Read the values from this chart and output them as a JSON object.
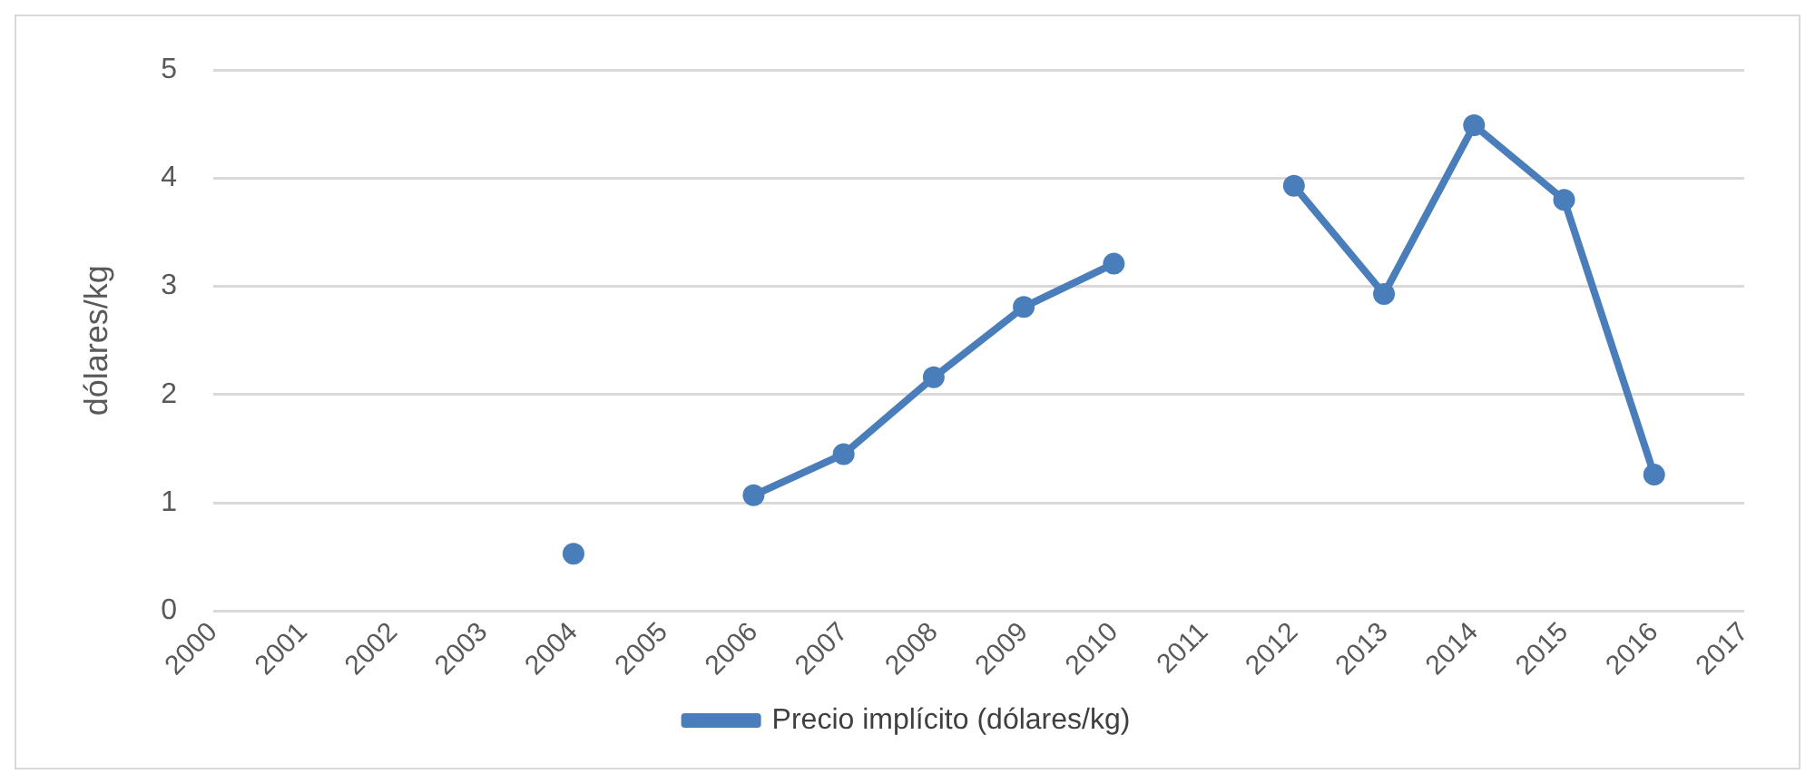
{
  "chart_data": {
    "type": "line",
    "ylabel": "dólares/kg",
    "categories": [
      "2000",
      "2001",
      "2002",
      "2003",
      "2004",
      "2005",
      "2006",
      "2007",
      "2008",
      "2009",
      "2010",
      "2011",
      "2012",
      "2013",
      "2014",
      "2015",
      "2016",
      "2017"
    ],
    "series": [
      {
        "name": "Precio implícito (dólares/kg)",
        "color": "#4a7ebb",
        "values": [
          null,
          null,
          null,
          null,
          0.53,
          null,
          1.07,
          1.45,
          2.16,
          2.81,
          3.21,
          null,
          3.93,
          2.93,
          4.49,
          3.8,
          1.26,
          null
        ]
      }
    ],
    "ylim": [
      0,
      5
    ],
    "yticks": [
      0,
      1,
      2,
      3,
      4,
      5
    ],
    "grid": "y",
    "legend": "bottom",
    "marker": "circle",
    "line_style": "solid"
  }
}
